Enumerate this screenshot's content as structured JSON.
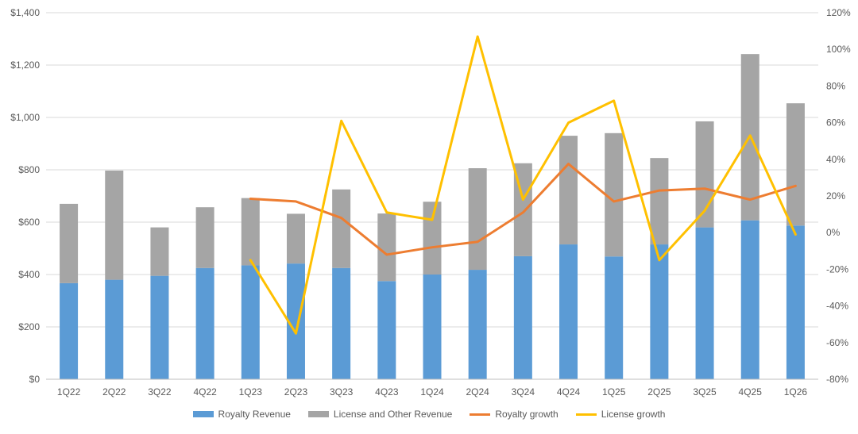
{
  "chart_data": {
    "type": "bar",
    "title": "",
    "xlabel": "",
    "ylabel": "",
    "ylim": [
      0,
      1400
    ],
    "y2lim": [
      -80,
      120
    ],
    "grid": true,
    "legend_position": "bottom",
    "yticks": [
      "$0",
      "$200",
      "$400",
      "$600",
      "$800",
      "$1,000",
      "$1,200",
      "$1,400"
    ],
    "y2ticks": [
      "-80%",
      "-60%",
      "-40%",
      "-20%",
      "0%",
      "20%",
      "40%",
      "60%",
      "80%",
      "100%",
      "120%"
    ],
    "categories": [
      "1Q22",
      "2Q22",
      "3Q22",
      "4Q22",
      "1Q23",
      "2Q23",
      "3Q23",
      "4Q23",
      "1Q24",
      "2Q24",
      "3Q24",
      "4Q24",
      "1Q25",
      "2Q25",
      "3Q25",
      "4Q25",
      "1Q26"
    ],
    "series": [
      {
        "name": "Royalty Revenue",
        "type": "bar",
        "stack": "revenue",
        "axis": "left",
        "color": "#5B9BD5",
        "values": [
          367,
          380,
          395,
          425,
          435,
          442,
          425,
          375,
          400,
          418,
          470,
          515,
          469,
          515,
          580,
          607,
          587
        ]
      },
      {
        "name": "License and Other Revenue",
        "type": "bar",
        "stack": "revenue",
        "axis": "left",
        "color": "#A5A5A5",
        "values": [
          303,
          417,
          185,
          232,
          257,
          190,
          300,
          258,
          278,
          388,
          355,
          415,
          471,
          330,
          405,
          635,
          467
        ]
      },
      {
        "name": "Royalty growth",
        "type": "line",
        "axis": "right",
        "color": "#ED7D31",
        "values": [
          null,
          null,
          null,
          null,
          18.5,
          17,
          8,
          -12,
          -8,
          -5,
          11,
          37.5,
          17,
          23,
          24,
          18,
          25.5
        ]
      },
      {
        "name": "License growth",
        "type": "line",
        "axis": "right",
        "color": "#FFC000",
        "values": [
          null,
          null,
          null,
          null,
          -15,
          -55,
          61,
          11,
          7,
          107,
          18,
          60,
          72,
          -15,
          12,
          53,
          -1
        ]
      }
    ]
  }
}
